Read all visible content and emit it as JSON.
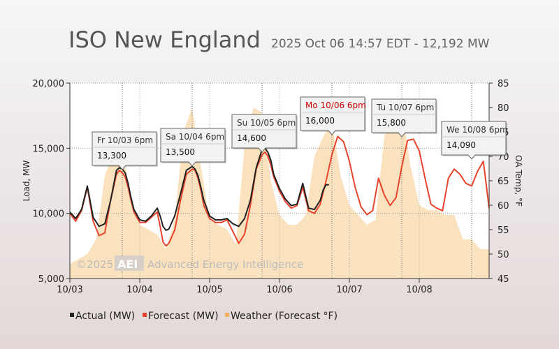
{
  "header": {
    "title": "ISO New England",
    "subtitle": "2025 Oct 06 14:57 EDT - 12,192 MW"
  },
  "watermark": {
    "copyright": "©2025",
    "logo": "AEI",
    "text": "Advanced Energy Intelligence"
  },
  "colors": {
    "actual": "#222222",
    "forecast": "#e8432c",
    "weather": "#f9d8a8",
    "peak_highlight": "#cc0000"
  },
  "chart_data": {
    "type": "line",
    "x_axis": {
      "ticks": [
        "10/03",
        "10/04",
        "10/05",
        "10/06",
        "10/07",
        "10/08"
      ],
      "range": [
        "10/03 00:00",
        "10/09 00:00"
      ]
    },
    "y_axis_left": {
      "label": "Load, MW",
      "ticks": [
        "5,000",
        "10,000",
        "15,000",
        "20,000"
      ],
      "range": [
        5000,
        20000
      ]
    },
    "y_axis_right": {
      "label": "OA Temp, °F",
      "ticks": [
        "45",
        "50",
        "55",
        "60",
        "65",
        "70",
        "75",
        "80",
        "85"
      ],
      "range": [
        45,
        85
      ]
    },
    "grid": true,
    "legend_position": "bottom",
    "legend": [
      {
        "key": "actual",
        "label": "Actual (MW)"
      },
      {
        "key": "forecast",
        "label": "Forecast (MW)"
      },
      {
        "key": "weather",
        "label": "Weather (Forecast °F)"
      }
    ],
    "series": [
      {
        "name": "Actual (MW)",
        "x_hours": [
          0,
          2,
          4,
          6,
          8,
          10,
          12,
          14,
          16,
          17,
          18,
          19,
          20,
          21,
          22,
          24,
          26,
          28,
          30,
          31,
          32,
          33,
          34,
          36,
          38,
          40,
          42,
          43,
          44,
          45,
          46,
          48,
          50,
          52,
          54,
          56,
          58,
          60,
          62,
          64,
          66,
          67,
          68,
          69,
          70,
          72,
          74,
          76,
          78,
          80,
          82,
          84,
          86,
          87,
          88,
          89
        ],
        "values": [
          10100,
          9600,
          10300,
          12100,
          9700,
          9000,
          9200,
          11000,
          13300,
          13500,
          13400,
          13100,
          12300,
          11200,
          10300,
          9500,
          9400,
          9800,
          10400,
          9800,
          9000,
          8700,
          8800,
          9800,
          11500,
          13300,
          13600,
          13400,
          12900,
          12000,
          11000,
          9800,
          9500,
          9500,
          9600,
          9200,
          9000,
          9600,
          11000,
          13500,
          14900,
          15000,
          14700,
          14100,
          13000,
          11900,
          11100,
          10600,
          10700,
          12300,
          10400,
          10300,
          11000,
          11800,
          12200,
          12192
        ]
      },
      {
        "name": "Forecast (MW)",
        "x_hours": [
          0,
          2,
          4,
          6,
          8,
          10,
          12,
          14,
          16,
          17,
          18,
          19,
          20,
          21,
          22,
          24,
          26,
          28,
          30,
          31,
          32,
          33,
          34,
          36,
          38,
          40,
          42,
          43,
          44,
          45,
          46,
          48,
          50,
          52,
          54,
          56,
          58,
          60,
          62,
          64,
          66,
          67,
          68,
          69,
          70,
          72,
          74,
          76,
          78,
          80,
          82,
          84,
          86,
          88,
          90,
          92,
          94,
          96,
          98,
          100,
          102,
          104,
          106,
          108,
          110,
          112,
          114,
          116,
          118,
          120,
          122,
          124,
          126,
          128,
          130,
          132,
          134,
          136,
          138,
          140,
          142,
          144
        ],
        "values": [
          10000,
          9400,
          10200,
          12000,
          9400,
          8300,
          8500,
          11000,
          13000,
          13300,
          13100,
          12800,
          12000,
          11000,
          10100,
          9300,
          9300,
          9700,
          10100,
          9000,
          7800,
          7500,
          7700,
          8700,
          11000,
          13000,
          13400,
          13300,
          12700,
          11800,
          10600,
          9600,
          9300,
          9300,
          9500,
          8600,
          7700,
          8400,
          10600,
          13400,
          14500,
          14700,
          14400,
          13700,
          12800,
          11700,
          10900,
          10400,
          10600,
          12000,
          10200,
          10000,
          10700,
          12500,
          14500,
          15900,
          15500,
          14000,
          12000,
          10500,
          9900,
          10200,
          12700,
          11400,
          10600,
          11200,
          13600,
          15600,
          15700,
          14800,
          12700,
          10700,
          10400,
          10200,
          12700,
          13400,
          13000,
          12300,
          12100,
          13200,
          14000,
          10400
        ]
      },
      {
        "name": "Weather (Forecast °F)",
        "x_hours": [
          0,
          3,
          6,
          9,
          12,
          15,
          18,
          21,
          24,
          27,
          30,
          33,
          36,
          39,
          42,
          45,
          48,
          51,
          54,
          57,
          60,
          63,
          66,
          69,
          72,
          75,
          78,
          81,
          84,
          87,
          90,
          93,
          96,
          99,
          102,
          105,
          108,
          111,
          114,
          117,
          120,
          123,
          126,
          129,
          132,
          135,
          138,
          141,
          144
        ],
        "values": [
          48,
          49,
          50,
          53,
          66,
          71,
          72,
          61,
          56,
          55,
          54,
          51,
          57,
          75,
          80,
          68,
          57,
          56,
          55,
          52,
          72,
          80,
          79,
          65,
          58,
          56,
          56,
          58,
          70,
          74,
          77,
          66,
          60,
          58,
          56,
          57,
          74,
          80,
          80,
          68,
          60,
          59,
          59,
          58,
          58,
          53,
          53,
          51,
          51
        ]
      }
    ],
    "annotations": [
      {
        "label": "Fr 10/03 6pm",
        "value": "13,300",
        "x_hour": 18,
        "peak": false
      },
      {
        "label": "Sa 10/04 6pm",
        "value": "13,500",
        "x_hour": 42,
        "peak": false
      },
      {
        "label": "Su 10/05 6pm",
        "value": "14,600",
        "x_hour": 66,
        "peak": false
      },
      {
        "label": "Mo 10/06 6pm",
        "value": "16,000",
        "x_hour": 90,
        "peak": true
      },
      {
        "label": "Tu 10/07 6pm",
        "value": "15,800",
        "x_hour": 114,
        "peak": false
      },
      {
        "label": "We 10/08 6pm",
        "value": "14,090",
        "x_hour": 138,
        "peak": false
      }
    ]
  }
}
